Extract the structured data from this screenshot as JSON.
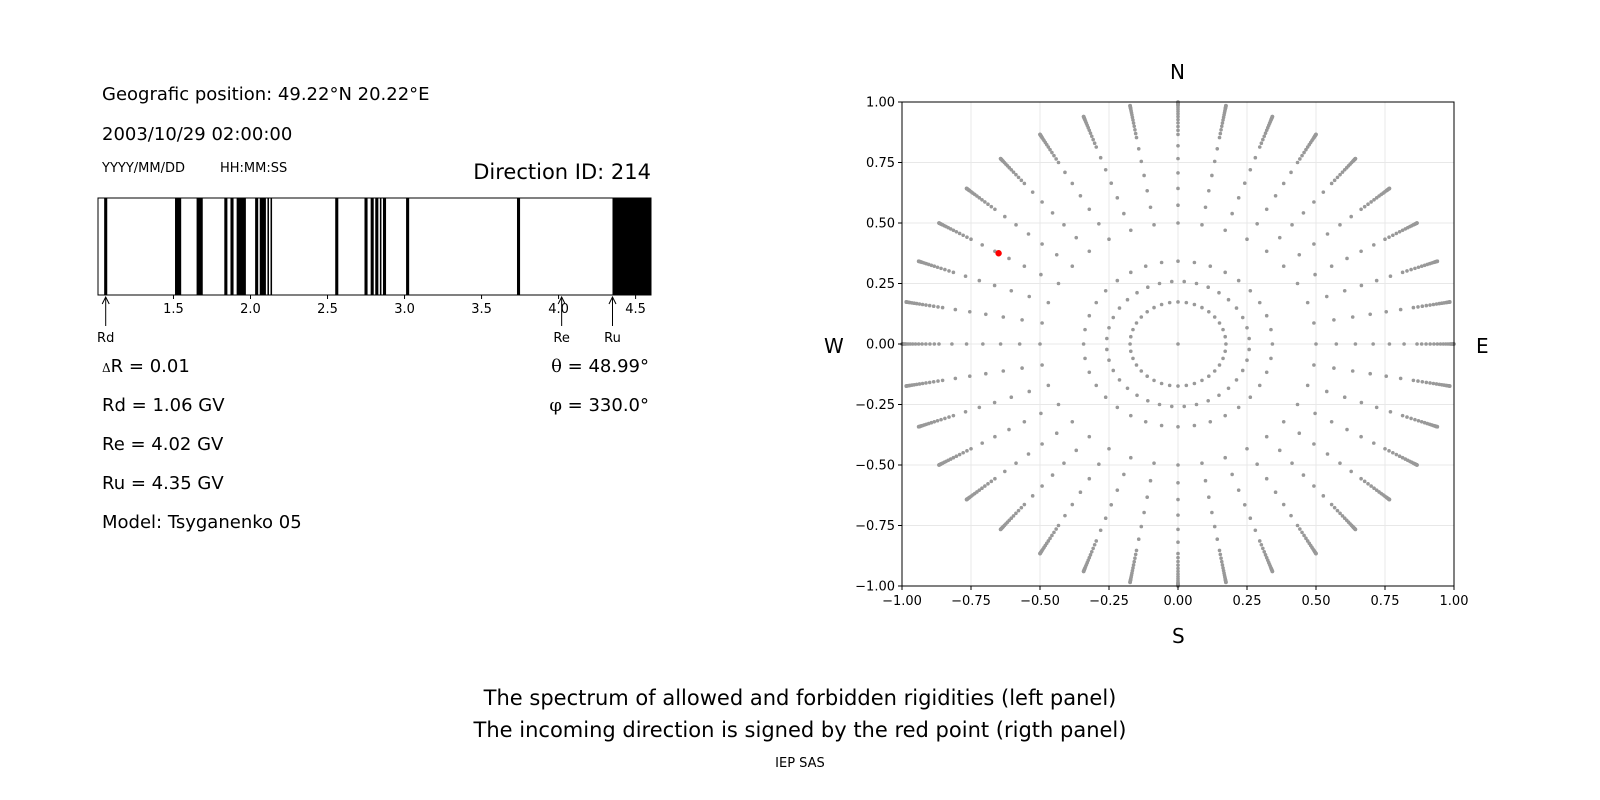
{
  "left_panel": {
    "position_text": "Geografic position: 49.22°N 20.22°E",
    "datetime_text": "2003/10/29 02:00:00",
    "date_format_label": "YYYY/MM/DD",
    "time_format_label": "HH:MM:SS",
    "direction_id_text": "Direction ID: 214",
    "delta_symbol": "Δ",
    "delta_r_text": "R = 0.01",
    "theta_symbol": "θ",
    "theta_text": "= 48.99°",
    "phi_symbol": "φ",
    "phi_text": "= 330.0°",
    "rd_text": "Rd = 1.06 GV",
    "re_text": "Re = 4.02 GV",
    "ru_text": "Ru = 4.35 GV",
    "model_text": "Model: Tsyganenko 05"
  },
  "compass": {
    "north": "N",
    "south": "S",
    "west": "W",
    "east": "E"
  },
  "footer": {
    "line1": "The spectrum of allowed and forbidden rigidities (left panel)",
    "line2": "The incoming direction is signed by the red point (rigth panel)",
    "credit": "IEP SAS"
  },
  "colors": {
    "band": "#000000",
    "grid_point": "#999999",
    "direction_point": "#ff0000",
    "grid": "#e8e8e8"
  },
  "chart_data": [
    {
      "type": "bar",
      "xlim": [
        1.01,
        4.6
      ],
      "ticks": [
        1.5,
        2.0,
        2.5,
        3.0,
        3.5,
        4.0,
        4.5
      ],
      "tick_labels": [
        "1.5",
        "2.0",
        "2.5",
        "3.0",
        "3.5",
        "4.0",
        "4.5"
      ],
      "forbidden_bands": [
        [
          1.05,
          1.07
        ],
        [
          1.51,
          1.55
        ],
        [
          1.65,
          1.69
        ],
        [
          1.83,
          1.85
        ],
        [
          1.87,
          1.89
        ],
        [
          1.91,
          1.97
        ],
        [
          2.03,
          2.05
        ],
        [
          2.06,
          2.1
        ],
        [
          2.11,
          2.12
        ],
        [
          2.13,
          2.14
        ],
        [
          2.55,
          2.57
        ],
        [
          2.74,
          2.76
        ],
        [
          2.78,
          2.8
        ],
        [
          2.81,
          2.83
        ],
        [
          2.84,
          2.85
        ],
        [
          2.86,
          2.88
        ],
        [
          3.01,
          3.03
        ],
        [
          3.73,
          3.75
        ],
        [
          4.35,
          4.6
        ]
      ],
      "markers": [
        {
          "label": "Rd",
          "x": 1.06
        },
        {
          "label": "Re",
          "x": 4.02
        },
        {
          "label": "Ru",
          "x": 4.35
        }
      ]
    },
    {
      "type": "scatter",
      "xlim": [
        -1.0,
        1.0
      ],
      "ylim": [
        -1.0,
        1.0
      ],
      "ticks": [
        -1.0,
        -0.75,
        -0.5,
        -0.25,
        0.0,
        0.25,
        0.5,
        0.75,
        1.0
      ],
      "tick_labels": [
        "−1.00",
        "−0.75",
        "−0.50",
        "−0.25",
        "0.00",
        "0.25",
        "0.50",
        "0.75",
        "1.00"
      ],
      "grid": true,
      "grid_series": {
        "name": "",
        "radial_lines_azimuth_step_deg": 10,
        "zenith_values_deg": [
          0,
          10,
          20,
          30,
          35,
          40,
          45,
          50,
          55,
          60,
          62,
          64,
          66,
          68,
          70,
          72,
          74,
          76,
          78,
          80,
          81,
          82,
          83,
          84,
          85,
          86,
          87,
          88,
          89,
          90
        ],
        "inner_ring_zenith_deg": 15,
        "inner_ring_azimuth_step_deg": 10
      },
      "direction_point": {
        "x": -0.65,
        "y": 0.375
      }
    }
  ]
}
